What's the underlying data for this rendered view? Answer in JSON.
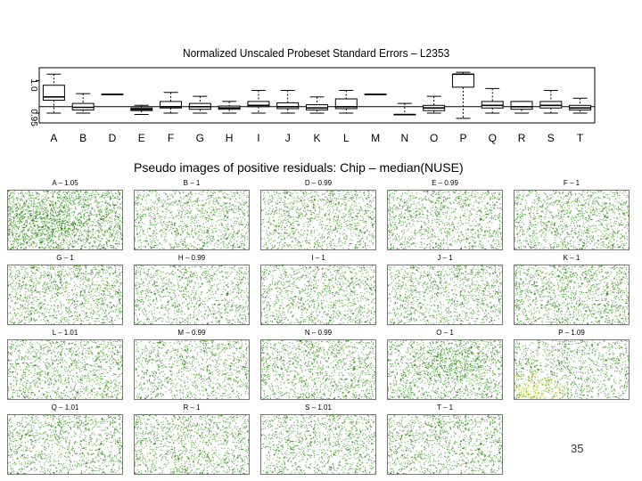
{
  "page_number": "35",
  "colors": {
    "residual_low": "#2e9e1a",
    "residual_high": "#c8d400",
    "axes": "#000000"
  },
  "chart_data": [
    {
      "type": "boxplot",
      "title": "Normalized Unscaled Probeset Standard Errors – L2353",
      "xlabel": "",
      "ylabel": "",
      "y_tick_labels": [
        "0.95",
        "1.0"
      ],
      "y_ticks": [
        0.95,
        1.0
      ],
      "ylim": [
        0.935,
        1.02
      ],
      "reference_line": 0.96,
      "categories": [
        "A",
        "B",
        "D",
        "E",
        "F",
        "G",
        "H",
        "I",
        "J",
        "K",
        "L",
        "M",
        "N",
        "O",
        "P",
        "Q",
        "R",
        "S",
        "T"
      ],
      "boxes": [
        {
          "min": 0.95,
          "q1": 0.97,
          "median": 0.975,
          "q3": 0.993,
          "max": 1.01
        },
        {
          "min": 0.95,
          "q1": 0.955,
          "median": 0.959,
          "q3": 0.965,
          "max": 0.98
        },
        {
          "min": 0.979,
          "q1": 0.979,
          "median": 0.979,
          "q3": 0.979,
          "max": 0.979
        },
        {
          "min": 0.948,
          "q1": 0.954,
          "median": 0.956,
          "q3": 0.958,
          "max": 0.962
        },
        {
          "min": 0.95,
          "q1": 0.958,
          "median": 0.96,
          "q3": 0.968,
          "max": 0.982
        },
        {
          "min": 0.95,
          "q1": 0.956,
          "median": 0.96,
          "q3": 0.965,
          "max": 0.976
        },
        {
          "min": 0.95,
          "q1": 0.956,
          "median": 0.958,
          "q3": 0.961,
          "max": 0.968
        },
        {
          "min": 0.95,
          "q1": 0.96,
          "median": 0.962,
          "q3": 0.968,
          "max": 0.985
        },
        {
          "min": 0.95,
          "q1": 0.957,
          "median": 0.96,
          "q3": 0.966,
          "max": 0.985
        },
        {
          "min": 0.95,
          "q1": 0.955,
          "median": 0.958,
          "q3": 0.963,
          "max": 0.975
        },
        {
          "min": 0.95,
          "q1": 0.957,
          "median": 0.96,
          "q3": 0.972,
          "max": 0.985
        },
        {
          "min": 0.979,
          "q1": 0.979,
          "median": 0.979,
          "q3": 0.979,
          "max": 0.979
        },
        {
          "min": 0.948,
          "q1": 0.948,
          "median": 0.948,
          "q3": 0.948,
          "max": 0.965
        },
        {
          "min": 0.95,
          "q1": 0.954,
          "median": 0.958,
          "q3": 0.962,
          "max": 0.976
        },
        {
          "min": 0.942,
          "q1": 0.99,
          "median": 1.01,
          "q3": 1.01,
          "max": 1.013
        },
        {
          "min": 0.95,
          "q1": 0.958,
          "median": 0.962,
          "q3": 0.968,
          "max": 0.988
        },
        {
          "min": 0.95,
          "q1": 0.956,
          "median": 0.96,
          "q3": 0.968,
          "max": 0.968
        },
        {
          "min": 0.95,
          "q1": 0.958,
          "median": 0.962,
          "q3": 0.968,
          "max": 0.985
        },
        {
          "min": 0.95,
          "q1": 0.955,
          "median": 0.958,
          "q3": 0.962,
          "max": 0.973
        }
      ]
    },
    {
      "type": "heatmap",
      "title": "Pseudo images of positive residuals: Chip – median(NUSE)",
      "panels": [
        {
          "label": "A – 1.05",
          "density": 0.75,
          "hotspot": "left-center"
        },
        {
          "label": "B – 1",
          "density": 0.5,
          "hotspot": ""
        },
        {
          "label": "D – 0.99",
          "density": 0.5,
          "hotspot": ""
        },
        {
          "label": "E – 0.99",
          "density": 0.5,
          "hotspot": ""
        },
        {
          "label": "F – 1",
          "density": 0.55,
          "hotspot": ""
        },
        {
          "label": "G – 1",
          "density": 0.55,
          "hotspot": ""
        },
        {
          "label": "H – 0.99",
          "density": 0.45,
          "hotspot": ""
        },
        {
          "label": "I – 1",
          "density": 0.5,
          "hotspot": ""
        },
        {
          "label": "J – 1",
          "density": 0.5,
          "hotspot": ""
        },
        {
          "label": "K – 1",
          "density": 0.55,
          "hotspot": ""
        },
        {
          "label": "L – 1.01",
          "density": 0.55,
          "hotspot": ""
        },
        {
          "label": "M – 0.99",
          "density": 0.45,
          "hotspot": ""
        },
        {
          "label": "N – 0.99",
          "density": 0.5,
          "hotspot": ""
        },
        {
          "label": "O – 1",
          "density": 0.6,
          "hotspot": "center"
        },
        {
          "label": "P – 1.09",
          "density": 0.5,
          "hotspot": "bottom-left"
        },
        {
          "label": "Q – 1.01",
          "density": 0.5,
          "hotspot": ""
        },
        {
          "label": "R – 1",
          "density": 0.5,
          "hotspot": ""
        },
        {
          "label": "S – 1.01",
          "density": 0.5,
          "hotspot": ""
        },
        {
          "label": "T – 1",
          "density": 0.5,
          "hotspot": ""
        }
      ]
    }
  ]
}
